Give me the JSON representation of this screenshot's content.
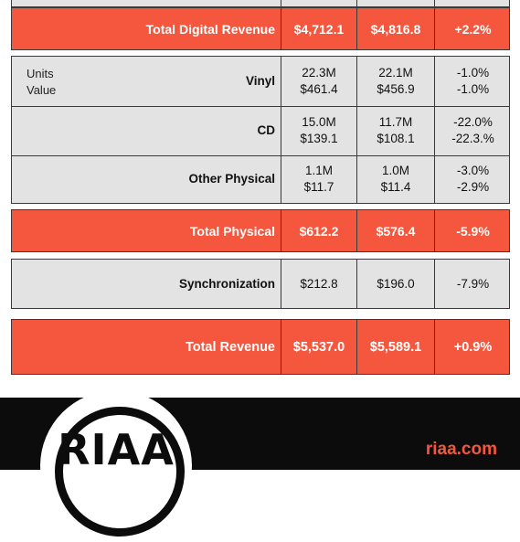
{
  "rows": {
    "total_digital": {
      "label": "Total Digital Revenue",
      "v1": "$4,712.1",
      "v2": "$4,816.8",
      "change": "+2.2%"
    },
    "vinyl": {
      "legend_units": "Units",
      "legend_value": "Value",
      "label": "Vinyl",
      "v1_units": "22.3M",
      "v1_value": "$461.4",
      "v2_units": "22.1M",
      "v2_value": "$456.9",
      "change_units": "-1.0%",
      "change_value": "-1.0%"
    },
    "cd": {
      "label": "CD",
      "v1_units": "15.0M",
      "v1_value": "$139.1",
      "v2_units": "11.7M",
      "v2_value": "$108.1",
      "change_units": "-22.0%",
      "change_value": "-22.3.%"
    },
    "other_physical": {
      "label": "Other Physical",
      "v1_units": "1.1M",
      "v1_value": "$11.7",
      "v2_units": "1.0M",
      "v2_value": "$11.4",
      "change_units": "-3.0%",
      "change_value": "-2.9%"
    },
    "total_physical": {
      "label": "Total Physical",
      "v1": "$612.2",
      "v2": "$576.4",
      "change": "-5.9%"
    },
    "synchronization": {
      "label": "Synchronization",
      "v1": "$212.8",
      "v2": "$196.0",
      "change": "-7.9%"
    },
    "total_revenue": {
      "label": "Total Revenue",
      "v1": "$5,537.0",
      "v2": "$5,589.1",
      "change": "+0.9%"
    }
  },
  "footer": {
    "logo_text": "RIAA",
    "site": "riaa.com"
  },
  "colors": {
    "accent": "#f4573d",
    "band_gray": "#e3e3e3",
    "footer_bg": "#0c0c0c"
  }
}
